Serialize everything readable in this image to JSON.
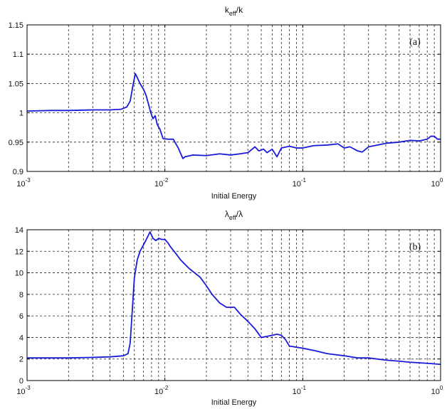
{
  "chart_data": [
    {
      "type": "line",
      "title": "k_eff/k",
      "title_main": "k",
      "title_sub": "eff",
      "title_tail": "/k",
      "panel_label": "(a)",
      "xlabel": "Initial Energy",
      "ylabel": "",
      "x_scale": "log",
      "xlim": [
        0.001,
        1
      ],
      "ylim": [
        0.9,
        1.15
      ],
      "xticks": [
        0.001,
        0.01,
        0.1,
        1
      ],
      "xtick_labels": [
        {
          "base": "10",
          "exp": "-3"
        },
        {
          "base": "10",
          "exp": "-2"
        },
        {
          "base": "10",
          "exp": "-1"
        },
        {
          "base": "10",
          "exp": "0"
        }
      ],
      "yticks": [
        0.9,
        0.95,
        1,
        1.05,
        1.1,
        1.15
      ],
      "ytick_labels": [
        "0.9",
        "0.95",
        "1",
        "1.05",
        "1.1",
        "1.15"
      ],
      "grid": true,
      "series_color": "#1a1adb",
      "series": [
        {
          "x": [
            0.001,
            0.0015,
            0.002,
            0.003,
            0.004,
            0.0048,
            0.0053,
            0.0056,
            0.0059,
            0.0061,
            0.0063,
            0.0066,
            0.0068,
            0.007,
            0.0073,
            0.0076,
            0.0079,
            0.0082,
            0.0085,
            0.0088,
            0.0092,
            0.0097,
            0.0105,
            0.0115,
            0.0125,
            0.0135,
            0.014,
            0.016,
            0.02,
            0.025,
            0.03,
            0.035,
            0.04,
            0.045,
            0.048,
            0.052,
            0.055,
            0.06,
            0.065,
            0.07,
            0.08,
            0.09,
            0.1,
            0.12,
            0.15,
            0.18,
            0.2,
            0.22,
            0.25,
            0.27,
            0.3,
            0.35,
            0.4,
            0.5,
            0.6,
            0.7,
            0.8,
            0.85,
            0.9,
            0.95,
            1.0
          ],
          "y": [
            1.003,
            1.004,
            1.004,
            1.005,
            1.005,
            1.006,
            1.01,
            1.02,
            1.05,
            1.067,
            1.06,
            1.05,
            1.045,
            1.04,
            1.03,
            1.015,
            1.0,
            0.99,
            0.995,
            0.98,
            0.972,
            0.956,
            0.955,
            0.955,
            0.94,
            0.922,
            0.925,
            0.928,
            0.927,
            0.93,
            0.928,
            0.93,
            0.932,
            0.942,
            0.935,
            0.938,
            0.932,
            0.938,
            0.925,
            0.94,
            0.943,
            0.94,
            0.94,
            0.944,
            0.945,
            0.947,
            0.94,
            0.942,
            0.935,
            0.933,
            0.942,
            0.945,
            0.948,
            0.95,
            0.953,
            0.952,
            0.955,
            0.96,
            0.96,
            0.955,
            0.955
          ]
        }
      ]
    },
    {
      "type": "line",
      "title": "λ_eff/λ",
      "title_main": "λ",
      "title_sub": "eff",
      "title_tail": "/λ",
      "panel_label": "(b)",
      "xlabel": "Initial Energy",
      "ylabel": "",
      "x_scale": "log",
      "xlim": [
        0.001,
        1
      ],
      "ylim": [
        0,
        14
      ],
      "xticks": [
        0.001,
        0.01,
        0.1,
        1
      ],
      "xtick_labels": [
        {
          "base": "10",
          "exp": "-3"
        },
        {
          "base": "10",
          "exp": "-2"
        },
        {
          "base": "10",
          "exp": "-1"
        },
        {
          "base": "10",
          "exp": "0"
        }
      ],
      "yticks": [
        0,
        2,
        4,
        6,
        8,
        10,
        12,
        14
      ],
      "ytick_labels": [
        "0",
        "2",
        "4",
        "6",
        "8",
        "10",
        "12",
        "14"
      ],
      "grid": true,
      "series_color": "#1a1adb",
      "series": [
        {
          "x": [
            0.001,
            0.0015,
            0.002,
            0.003,
            0.004,
            0.005,
            0.0054,
            0.0056,
            0.0058,
            0.006,
            0.0063,
            0.0066,
            0.007,
            0.0074,
            0.0078,
            0.0082,
            0.0086,
            0.009,
            0.0095,
            0.01,
            0.0105,
            0.011,
            0.012,
            0.013,
            0.015,
            0.018,
            0.02,
            0.022,
            0.025,
            0.028,
            0.032,
            0.035,
            0.04,
            0.045,
            0.05,
            0.055,
            0.06,
            0.065,
            0.07,
            0.075,
            0.08,
            0.1,
            0.12,
            0.15,
            0.2,
            0.25,
            0.3,
            0.4,
            0.5,
            0.6,
            0.8,
            1.0
          ],
          "y": [
            2.1,
            2.1,
            2.1,
            2.15,
            2.2,
            2.3,
            2.5,
            3.5,
            6.5,
            9.5,
            11.2,
            12.0,
            12.6,
            13.2,
            13.8,
            13.2,
            13.0,
            13.2,
            13.1,
            13.1,
            12.8,
            12.4,
            11.8,
            11.2,
            10.4,
            9.6,
            8.8,
            8.0,
            7.2,
            6.8,
            6.8,
            6.2,
            5.5,
            4.8,
            4.0,
            4.1,
            4.2,
            4.3,
            4.2,
            3.8,
            3.2,
            3.0,
            2.8,
            2.5,
            2.3,
            2.1,
            2.1,
            1.9,
            1.8,
            1.7,
            1.6,
            1.5
          ]
        }
      ]
    }
  ]
}
